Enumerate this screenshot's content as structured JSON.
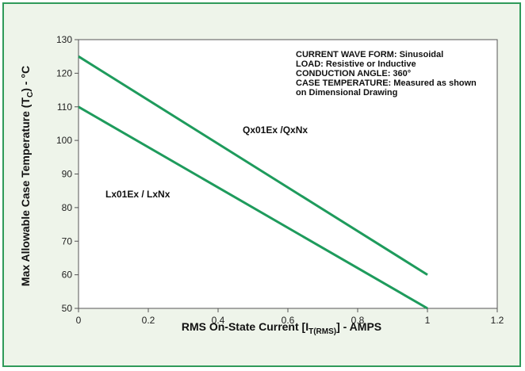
{
  "chart_data": {
    "type": "line",
    "title": "",
    "xlabel": {
      "main": "RMS On-State Current [I",
      "sub": "T(RMS)",
      "after": "] - AMPS"
    },
    "ylabel": {
      "main": "Max Allowable Case Temperature  (T",
      "sub": "C",
      "after": ") - °C"
    },
    "xlim": [
      0,
      1.2
    ],
    "ylim": [
      50,
      130
    ],
    "x_ticks": [
      "0",
      "0.2",
      "0.4",
      "0.6",
      "0.8",
      "1",
      "1.2"
    ],
    "y_ticks": [
      "50",
      "60",
      "70",
      "80",
      "90",
      "100",
      "110",
      "120",
      "130"
    ],
    "grid": false,
    "series": [
      {
        "name": "Qx01Ex /QxNx",
        "x": [
          0,
          1
        ],
        "y": [
          125,
          60
        ]
      },
      {
        "name": "Lx01Ex / LxNx",
        "x": [
          0,
          1
        ],
        "y": [
          110,
          50
        ]
      }
    ],
    "annotations": [
      "CURRENT WAVE FORM: Sinusoidal",
      "LOAD: Resistive or Inductive",
      "CONDUCTION ANGLE: 360°",
      "CASE TEMPERATURE: Measured as shown",
      "on Dimensional Drawing"
    ],
    "colors": {
      "series": "#1e9b5c",
      "frame": "#2f9a5a",
      "background": "#eef4ea",
      "plot_background": "#ffffff"
    }
  }
}
